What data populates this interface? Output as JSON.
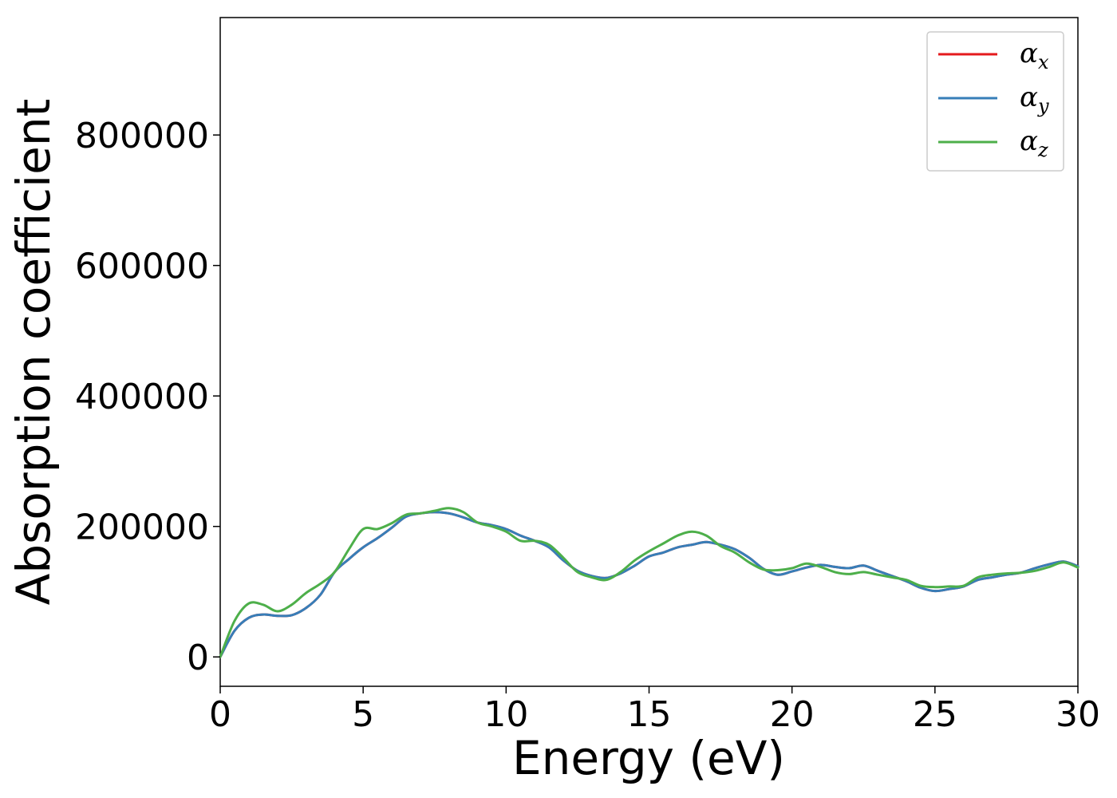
{
  "chart_data": {
    "type": "line",
    "xlabel": "Energy (eV)",
    "ylabel": "Absorption coefficient",
    "xlim": [
      0,
      30
    ],
    "ylim": [
      -45000,
      980000
    ],
    "x_ticks": [
      0,
      5,
      10,
      15,
      20,
      25,
      30
    ],
    "y_ticks": [
      0,
      200000,
      400000,
      600000,
      800000
    ],
    "grid": false,
    "legend_position": "top-right",
    "x": [
      0,
      0.5,
      1,
      1.5,
      2,
      2.5,
      3,
      3.5,
      4,
      4.5,
      5,
      5.5,
      6,
      6.5,
      7,
      7.5,
      8,
      8.5,
      9,
      9.5,
      10,
      10.5,
      11,
      11.5,
      12,
      12.5,
      13,
      13.5,
      14,
      14.5,
      15,
      15.5,
      16,
      16.5,
      17,
      17.5,
      18,
      18.5,
      19,
      19.5,
      20,
      20.5,
      21,
      21.5,
      22,
      22.5,
      23,
      23.5,
      24,
      24.5,
      25,
      25.5,
      26,
      26.5,
      27,
      27.5,
      28,
      28.5,
      29,
      29.5,
      30
    ],
    "series": [
      {
        "name": "α",
        "subscript": "x",
        "color": "#e41a1c",
        "values": [
          0,
          40000,
          60000,
          65000,
          63000,
          64000,
          75000,
          95000,
          130000,
          150000,
          168000,
          182000,
          198000,
          215000,
          220000,
          222000,
          220000,
          214000,
          206000,
          202000,
          196000,
          186000,
          178000,
          168000,
          148000,
          132000,
          124000,
          121000,
          128000,
          140000,
          154000,
          160000,
          168000,
          172000,
          176000,
          172000,
          165000,
          152000,
          135000,
          126000,
          131000,
          137000,
          141000,
          138000,
          136000,
          140000,
          132000,
          124000,
          116000,
          106000,
          101000,
          104000,
          108000,
          118000,
          122000,
          126000,
          129000,
          136000,
          142000,
          146000,
          139000
        ]
      },
      {
        "name": "α",
        "subscript": "y",
        "color": "#377eb8",
        "values": [
          0,
          40000,
          60000,
          65000,
          63000,
          64000,
          75000,
          95000,
          130000,
          150000,
          168000,
          182000,
          198000,
          215000,
          220000,
          222000,
          220000,
          214000,
          206000,
          202000,
          196000,
          186000,
          178000,
          168000,
          148000,
          132000,
          124000,
          121000,
          128000,
          140000,
          154000,
          160000,
          168000,
          172000,
          176000,
          172000,
          165000,
          152000,
          135000,
          126000,
          131000,
          137000,
          141000,
          138000,
          136000,
          140000,
          132000,
          124000,
          116000,
          106000,
          101000,
          104000,
          108000,
          118000,
          122000,
          126000,
          129000,
          136000,
          142000,
          146000,
          139000
        ]
      },
      {
        "name": "α",
        "subscript": "z",
        "color": "#4daf4a",
        "values": [
          0,
          55000,
          82000,
          80000,
          70000,
          80000,
          98000,
          112000,
          130000,
          165000,
          196000,
          196000,
          205000,
          218000,
          220000,
          224000,
          228000,
          222000,
          206000,
          200000,
          192000,
          178000,
          178000,
          172000,
          152000,
          130000,
          122000,
          118000,
          130000,
          148000,
          162000,
          174000,
          186000,
          192000,
          186000,
          170000,
          160000,
          145000,
          134000,
          133000,
          136000,
          143000,
          138000,
          130000,
          127000,
          130000,
          126000,
          122000,
          118000,
          109000,
          107000,
          108000,
          109000,
          122000,
          126000,
          128000,
          129000,
          132000,
          138000,
          145000,
          137000
        ]
      }
    ]
  }
}
